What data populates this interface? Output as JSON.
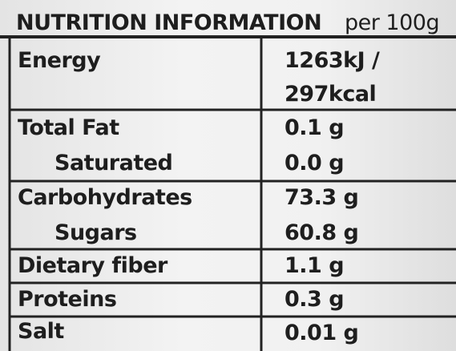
{
  "header": {
    "title": "NUTRITION INFORMATION",
    "basis": "per 100g"
  },
  "rows": [
    {
      "label": "Energy",
      "value_lines": [
        "1263kJ /",
        "297kcal"
      ]
    },
    {
      "label": "Total Fat",
      "value": "0.1 g"
    },
    {
      "label": "Saturated",
      "value": "0.0 g"
    },
    {
      "label": "Carbohydrates",
      "value": "73.3 g"
    },
    {
      "label": "Sugars",
      "value": "60.8 g"
    },
    {
      "label": "Dietary fiber",
      "value": "1.1 g"
    },
    {
      "label": "Proteins",
      "value": "0.3 g"
    },
    {
      "label": "Salt",
      "value": "0.01 g"
    }
  ]
}
